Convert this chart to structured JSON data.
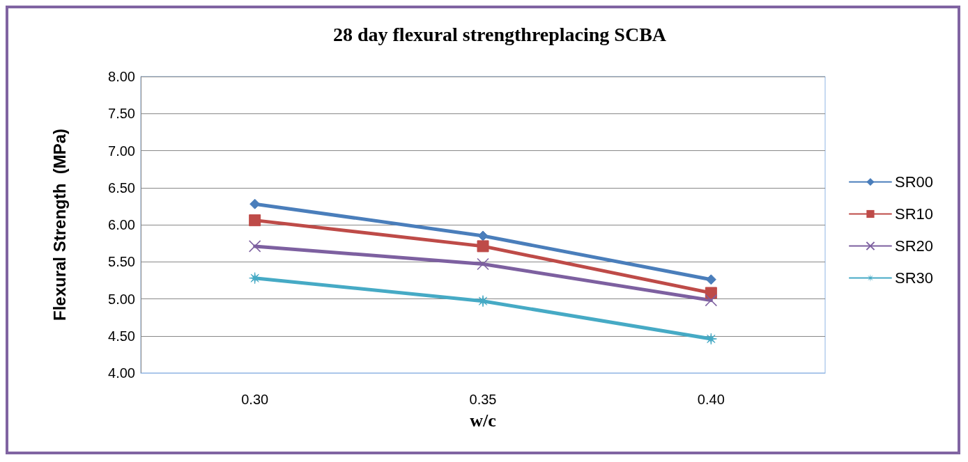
{
  "chart_data": {
    "type": "line",
    "title": "28 day flexural strengthreplacing SCBA",
    "xlabel": "w/c",
    "ylabel": "Flexural Strength  (MPa)",
    "categories": [
      "0.30",
      "0.35",
      "0.40"
    ],
    "series": [
      {
        "name": "SR00",
        "color": "#4a7ebb",
        "marker": "diamond",
        "values": [
          6.28,
          5.85,
          5.26
        ]
      },
      {
        "name": "SR10",
        "color": "#be4b48",
        "marker": "square",
        "values": [
          6.06,
          5.71,
          5.08
        ]
      },
      {
        "name": "SR20",
        "color": "#7d60a0",
        "marker": "cross",
        "values": [
          5.71,
          5.47,
          4.98
        ]
      },
      {
        "name": "SR30",
        "color": "#46aac5",
        "marker": "star",
        "values": [
          5.28,
          4.97,
          4.46
        ]
      }
    ],
    "ylim": [
      4,
      8
    ],
    "yticks": [
      {
        "value": 4,
        "label": "4.00"
      },
      {
        "value": 4.5,
        "label": "4.50"
      },
      {
        "value": 5,
        "label": "5.00"
      },
      {
        "value": 5.5,
        "label": "5.50"
      },
      {
        "value": 6,
        "label": "6.00"
      },
      {
        "value": 6.5,
        "label": "6.50"
      },
      {
        "value": 7,
        "label": "7.00"
      },
      {
        "value": 7.5,
        "label": "7.50"
      },
      {
        "value": 8,
        "label": "8.00"
      }
    ],
    "grid": "y",
    "legend": "right",
    "line_style": "solid"
  }
}
